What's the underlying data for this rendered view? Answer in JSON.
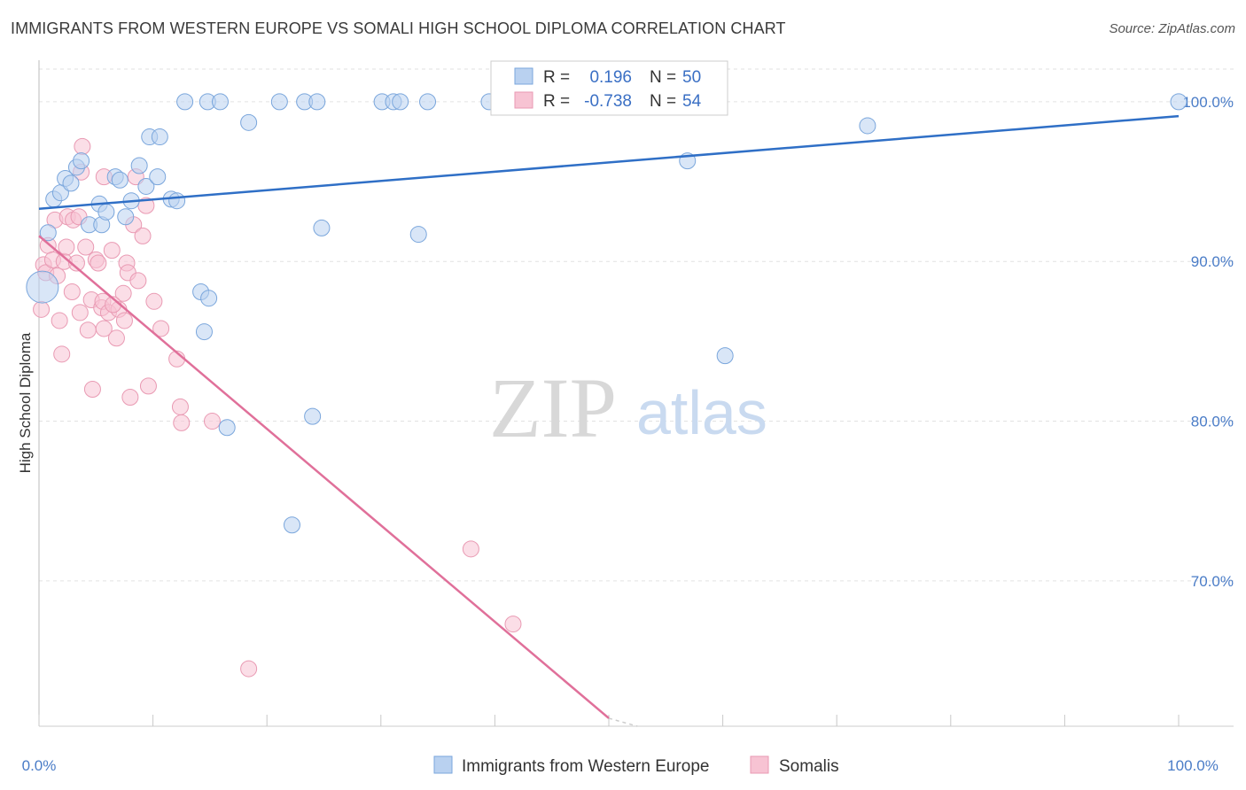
{
  "header": {
    "title": "IMMIGRANTS FROM WESTERN EUROPE VS SOMALI HIGH SCHOOL DIPLOMA CORRELATION CHART",
    "source": "Source: ZipAtlas.com"
  },
  "watermark": {
    "zip": "ZIP",
    "atlas": "atlas"
  },
  "colors": {
    "blue_fill": "#b9d1f0",
    "blue_stroke": "#7aa6dc",
    "blue_line": "#2f6fc6",
    "pink_fill": "#f7c3d3",
    "pink_stroke": "#e99ab3",
    "pink_line": "#e0709a"
  },
  "stats": [
    {
      "r_label": "R =",
      "r_value": "0.196",
      "n_label": "N =",
      "n_value": "50"
    },
    {
      "r_label": "R =",
      "r_value": "-0.738",
      "n_label": "N =",
      "n_value": "54"
    }
  ],
  "legend": [
    "Immigrants from Western Europe",
    "Somalis"
  ],
  "chart_data": {
    "type": "scatter",
    "xlabel": "",
    "ylabel": "High School Diploma",
    "xlim": [
      0,
      100
    ],
    "ylim": [
      60.9,
      102.6
    ],
    "x_tick_labels": [
      "0.0%",
      "100.0%"
    ],
    "y_ticks": [
      {
        "value": 100,
        "label": "100.0%"
      },
      {
        "value": 90,
        "label": "90.0%"
      },
      {
        "value": 80,
        "label": "80.0%"
      },
      {
        "value": 70,
        "label": "70.0%"
      }
    ],
    "grid": true,
    "legend_position": "bottom-center",
    "series": [
      {
        "name": "Immigrants from Western Europe",
        "trend": {
          "x": [
            0,
            100
          ],
          "y": [
            93.3,
            99.1
          ]
        },
        "points": [
          [
            0.3,
            88.4
          ],
          [
            0.8,
            91.8
          ],
          [
            1.3,
            93.9
          ],
          [
            1.9,
            94.3
          ],
          [
            2.3,
            95.2
          ],
          [
            2.8,
            94.9
          ],
          [
            3.3,
            95.9
          ],
          [
            3.7,
            96.3
          ],
          [
            4.4,
            92.3
          ],
          [
            5.3,
            93.6
          ],
          [
            5.5,
            92.3
          ],
          [
            5.9,
            93.1
          ],
          [
            6.7,
            95.3
          ],
          [
            7.1,
            95.1
          ],
          [
            7.6,
            92.8
          ],
          [
            8.1,
            93.8
          ],
          [
            8.8,
            96.0
          ],
          [
            9.4,
            94.7
          ],
          [
            9.7,
            97.8
          ],
          [
            10.6,
            97.8
          ],
          [
            10.4,
            95.3
          ],
          [
            11.6,
            93.9
          ],
          [
            12.1,
            93.8
          ],
          [
            12.8,
            100.0
          ],
          [
            14.8,
            100.0
          ],
          [
            15.9,
            100.0
          ],
          [
            14.5,
            85.6
          ],
          [
            14.2,
            88.1
          ],
          [
            14.9,
            87.7
          ],
          [
            16.5,
            79.6
          ],
          [
            18.4,
            98.7
          ],
          [
            21.1,
            100.0
          ],
          [
            23.3,
            100.0
          ],
          [
            24.4,
            100.0
          ],
          [
            22.2,
            73.5
          ],
          [
            24.0,
            80.3
          ],
          [
            24.8,
            92.1
          ],
          [
            30.1,
            100.0
          ],
          [
            31.1,
            100.0
          ],
          [
            31.7,
            100.0
          ],
          [
            33.3,
            91.7
          ],
          [
            34.1,
            100.0
          ],
          [
            39.5,
            100.0
          ],
          [
            47.8,
            100.0
          ],
          [
            50.0,
            100.0
          ],
          [
            57.1,
            100.0
          ],
          [
            56.9,
            96.3
          ],
          [
            60.2,
            84.1
          ],
          [
            72.7,
            98.5
          ],
          [
            100.0,
            100.0
          ]
        ]
      },
      {
        "name": "Somalis",
        "trend": {
          "x": [
            0,
            50
          ],
          "y": [
            91.6,
            61.4
          ]
        },
        "trend_dashed": {
          "x": [
            50,
            52.5
          ],
          "y": [
            61.4,
            59.9
          ]
        },
        "points": [
          [
            0.2,
            87.0
          ],
          [
            0.4,
            89.8
          ],
          [
            0.6,
            89.3
          ],
          [
            0.8,
            91.0
          ],
          [
            1.2,
            90.1
          ],
          [
            1.4,
            92.6
          ],
          [
            1.6,
            89.1
          ],
          [
            1.8,
            86.3
          ],
          [
            2.0,
            84.2
          ],
          [
            2.2,
            90.0
          ],
          [
            2.4,
            90.9
          ],
          [
            2.5,
            92.8
          ],
          [
            2.9,
            88.1
          ],
          [
            3.0,
            92.6
          ],
          [
            3.3,
            89.9
          ],
          [
            3.5,
            92.8
          ],
          [
            3.6,
            86.8
          ],
          [
            3.7,
            95.6
          ],
          [
            3.8,
            97.2
          ],
          [
            4.1,
            90.9
          ],
          [
            4.3,
            85.7
          ],
          [
            4.6,
            87.6
          ],
          [
            4.7,
            82.0
          ],
          [
            5.0,
            90.1
          ],
          [
            5.2,
            89.9
          ],
          [
            5.5,
            87.1
          ],
          [
            5.6,
            87.5
          ],
          [
            5.7,
            85.8
          ],
          [
            5.7,
            95.3
          ],
          [
            6.1,
            86.8
          ],
          [
            6.4,
            90.7
          ],
          [
            6.8,
            85.2
          ],
          [
            7.0,
            87.0
          ],
          [
            7.4,
            88.0
          ],
          [
            7.5,
            86.3
          ],
          [
            7.7,
            89.9
          ],
          [
            7.8,
            89.3
          ],
          [
            8.0,
            81.5
          ],
          [
            8.3,
            92.3
          ],
          [
            8.5,
            95.3
          ],
          [
            8.7,
            88.8
          ],
          [
            9.1,
            91.6
          ],
          [
            9.4,
            93.5
          ],
          [
            9.6,
            82.2
          ],
          [
            10.1,
            87.5
          ],
          [
            10.7,
            85.8
          ],
          [
            12.1,
            83.9
          ],
          [
            12.4,
            80.9
          ],
          [
            12.5,
            79.9
          ],
          [
            15.2,
            80.0
          ],
          [
            18.4,
            64.5
          ],
          [
            37.9,
            72.0
          ],
          [
            41.6,
            67.3
          ],
          [
            6.5,
            87.3
          ]
        ]
      }
    ]
  }
}
